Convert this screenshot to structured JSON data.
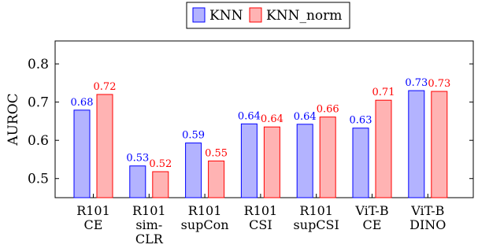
{
  "chart_data": {
    "type": "bar",
    "categories": [
      [
        "R101",
        "CE"
      ],
      [
        "R101",
        "sim-",
        "CLR"
      ],
      [
        "R101",
        "supCon"
      ],
      [
        "R101",
        "CSI"
      ],
      [
        "R101",
        "supCSI"
      ],
      [
        "ViT-B",
        "CE"
      ],
      [
        "ViT-B",
        "DINO"
      ]
    ],
    "series": [
      {
        "name": "KNN",
        "values": [
          0.679,
          0.533,
          0.593,
          0.643,
          0.642,
          0.632,
          0.73
        ],
        "labels": [
          "0.68",
          "0.53",
          "0.59",
          "0.64",
          "0.64",
          "0.63",
          "0.73"
        ],
        "fill": "#b3b3ff",
        "stroke": "#0000ff",
        "label_color": "#0000ff"
      },
      {
        "name": "KNN_norm",
        "values": [
          0.72,
          0.518,
          0.546,
          0.635,
          0.661,
          0.705,
          0.728
        ],
        "labels": [
          "0.72",
          "0.52",
          "0.55",
          "0.64",
          "0.66",
          "0.71",
          "0.73"
        ],
        "fill": "#ffb3b3",
        "stroke": "#ff0000",
        "label_color": "#ff0000"
      }
    ],
    "ylabel": "AUROC",
    "xlabel": "",
    "ylim": [
      0.45,
      0.86
    ],
    "yticks": [
      "0.5",
      "0.6",
      "0.7",
      "0.8"
    ],
    "legend": "top-center",
    "grid": false
  }
}
